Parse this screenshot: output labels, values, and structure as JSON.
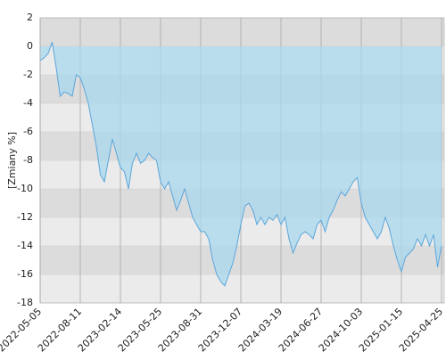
{
  "chart_data": {
    "type": "area",
    "y_label": "[Zmiany %]",
    "categories": [
      "2022-05-05",
      null,
      null,
      null,
      null,
      null,
      null,
      null,
      null,
      null,
      "2022-08-11",
      null,
      null,
      null,
      null,
      null,
      null,
      null,
      null,
      null,
      "2023-02-14",
      null,
      null,
      null,
      null,
      null,
      null,
      null,
      null,
      null,
      "2023-05-25",
      null,
      null,
      null,
      null,
      null,
      null,
      null,
      null,
      null,
      "2023-08-31",
      null,
      null,
      null,
      null,
      null,
      null,
      null,
      null,
      null,
      "2023-12-07",
      null,
      null,
      null,
      null,
      null,
      null,
      null,
      null,
      null,
      "2024-03-19",
      null,
      null,
      null,
      null,
      null,
      null,
      null,
      null,
      null,
      "2024-06-27",
      null,
      null,
      null,
      null,
      null,
      null,
      null,
      null,
      null,
      "2024-10-03",
      null,
      null,
      null,
      null,
      null,
      null,
      null,
      null,
      null,
      "2025-01-15",
      null,
      null,
      null,
      null,
      null,
      null,
      null,
      null,
      null,
      "2025-04-25"
    ],
    "series": [
      {
        "name": "Zmiany",
        "color": "#5aa6dc",
        "fill": "#a9d8ee",
        "values": [
          -1,
          -0.8,
          -0.5,
          0.3,
          -1.5,
          -3.5,
          -3.2,
          -3.3,
          -3.5,
          -2.0,
          -2.2,
          -3.0,
          -4.0,
          -5.5,
          -7.0,
          -9.0,
          -9.5,
          -8.0,
          -6.5,
          -7.5,
          -8.5,
          -8.8,
          -10.0,
          -8.2,
          -7.5,
          -8.2,
          -8.0,
          -7.5,
          -7.8,
          -8.0,
          -9.5,
          -10.0,
          -9.5,
          -10.5,
          -11.5,
          -10.8,
          -10.0,
          -11.0,
          -12.0,
          -12.5,
          -13.0,
          -13.0,
          -13.5,
          -15.0,
          -16.0,
          -16.5,
          -16.8,
          -16.0,
          -15.2,
          -14.0,
          -12.5,
          -11.2,
          -11.0,
          -11.5,
          -12.5,
          -12.0,
          -12.5,
          -12.0,
          -12.2,
          -11.8,
          -12.5,
          -12.0,
          -13.5,
          -14.5,
          -13.8,
          -13.2,
          -13.0,
          -13.2,
          -13.5,
          -12.5,
          -12.2,
          -13.0,
          -12.0,
          -11.5,
          -10.8,
          -10.2,
          -10.5,
          -10.0,
          -9.5,
          -9.2,
          -11.0,
          -12.0,
          -12.5,
          -13.0,
          -13.5,
          -13.0,
          -12.0,
          -12.8,
          -14.0,
          -15.0,
          -15.8,
          -14.8,
          -14.5,
          -14.2,
          -13.5,
          -14.0,
          -13.2,
          -14.0,
          -13.2,
          -15.5,
          -14.0
        ]
      }
    ],
    "ylim": [
      -18,
      2
    ],
    "yticks": [
      2,
      0,
      -2,
      -4,
      -6,
      -8,
      -10,
      -12,
      -14,
      -16,
      -18
    ],
    "grid": true
  }
}
